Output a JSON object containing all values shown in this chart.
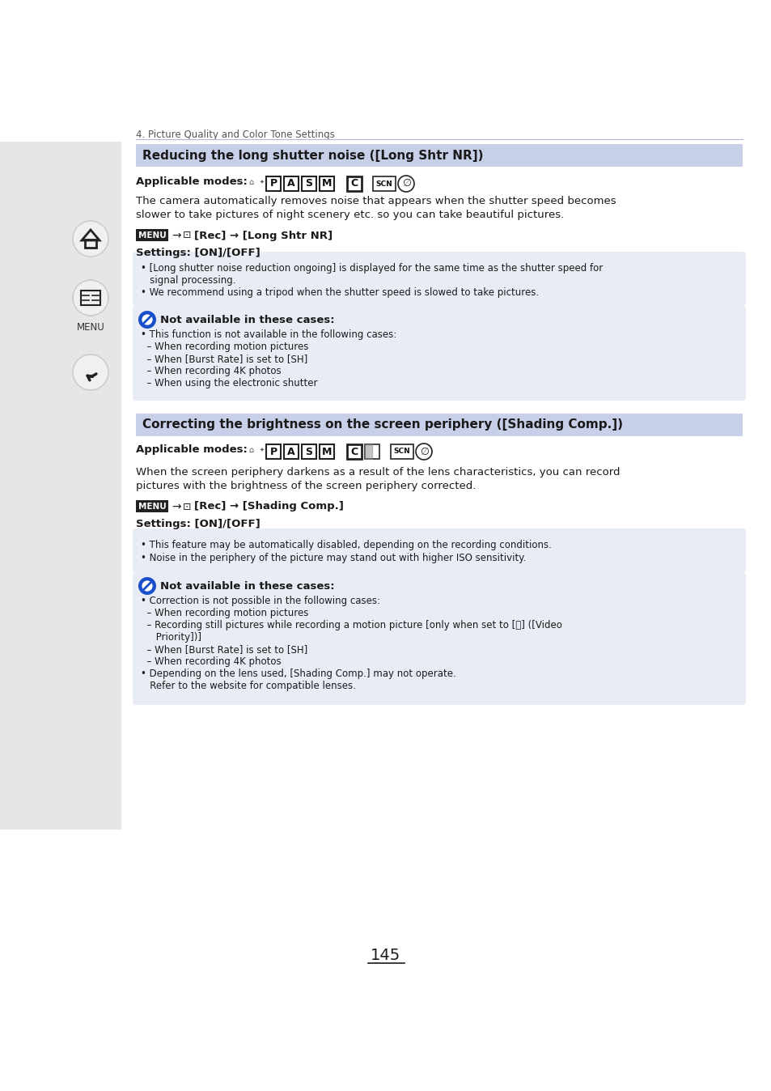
{
  "page_bg": "#ffffff",
  "sidebar_bg": "#e6e6e6",
  "chapter_text": "4. Picture Quality and Color Tone Settings",
  "section1_title": "Reducing the long shutter noise ([Long Shtr NR])",
  "section1_title_bg": "#c8cfe8",
  "section2_title": "Correcting the brightness on the screen periphery ([Shading Comp.])",
  "section2_title_bg": "#c8cfe8",
  "applicable_modes_label": "Applicable modes:",
  "section1_body": "The camera automatically removes noise that appears when the shutter speed becomes\nslower to take pictures of night scenery etc. so you can take beautiful pictures.",
  "section1_settings": "Settings: [ON]/[OFF]",
  "info_box1_lines": [
    "• [Long shutter noise reduction ongoing] is displayed for the same time as the shutter speed for",
    "   signal processing.",
    "• We recommend using a tripod when the shutter speed is slowed to take pictures."
  ],
  "not_avail_label": "Not available in these cases:",
  "not_avail_box1_lines": [
    "• This function is not available in the following cases:",
    "  – When recording motion pictures",
    "  – When [Burst Rate] is set to [SH]",
    "  – When recording 4K photos",
    "  – When using the electronic shutter"
  ],
  "section2_body": "When the screen periphery darkens as a result of the lens characteristics, you can record\npictures with the brightness of the screen periphery corrected.",
  "section2_settings": "Settings: [ON]/[OFF]",
  "info_box2_lines": [
    "• This feature may be automatically disabled, depending on the recording conditions.",
    "• Noise in the periphery of the picture may stand out with higher ISO sensitivity."
  ],
  "not_avail_box2_lines": [
    "• Correction is not possible in the following cases:",
    "  – When recording motion pictures",
    "  – Recording still pictures while recording a motion picture [only when set to [📹] ([Video",
    "     Priority])]",
    "  – When [Burst Rate] is set to [SH]",
    "  – When recording 4K photos",
    "• Depending on the lens used, [Shading Comp.] may not operate.",
    "   Refer to the website for compatible lenses."
  ],
  "page_number": "145",
  "light_blue_bg": "#e8edf5",
  "divider_color": "#b0b8d0",
  "text_color": "#1a1a1a",
  "note_icon_color": "#1a4fcc"
}
